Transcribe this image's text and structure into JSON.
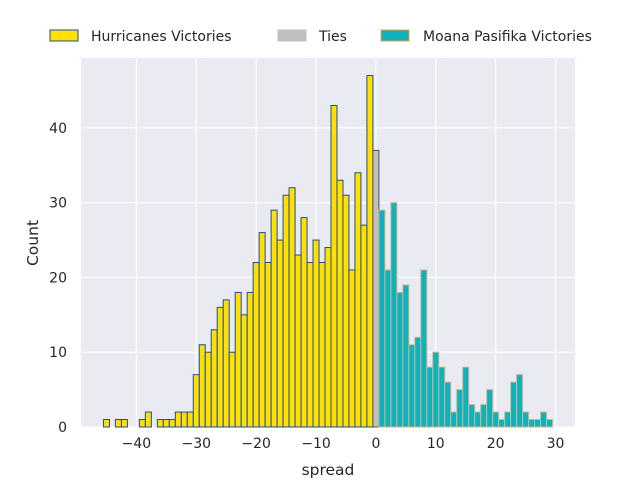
{
  "chart_data": {
    "type": "bar",
    "title": "",
    "xlabel": "spread",
    "ylabel": "Count",
    "xlim": [
      -49.25,
      33.25
    ],
    "ylim": [
      0,
      49.35
    ],
    "xticks": [
      -40,
      -30,
      -20,
      -10,
      0,
      10,
      20,
      30
    ],
    "xtick_labels": [
      "−40",
      "−30",
      "−20",
      "−10",
      "0",
      "10",
      "20",
      "30"
    ],
    "yticks": [
      0,
      10,
      20,
      30,
      40
    ],
    "ytick_labels": [
      "0",
      "10",
      "20",
      "30",
      "40"
    ],
    "grid": true,
    "legend_placement": "top (above plot)",
    "series": [
      {
        "name": "Hurricanes Victories",
        "color": "#FFE000",
        "edge": "#1F4E99",
        "x": [
          -45,
          -43,
          -42,
          -39,
          -38,
          -36,
          -35,
          -34,
          -33,
          -32,
          -31,
          -30,
          -29,
          -28,
          -27,
          -26,
          -25,
          -24,
          -23,
          -22,
          -21,
          -20,
          -19,
          -18,
          -17,
          -16,
          -15,
          -14,
          -13,
          -12,
          -11,
          -10,
          -9,
          -8,
          -7,
          -6,
          -5,
          -4,
          -3,
          -2,
          -1
        ],
        "values": [
          1,
          1,
          1,
          1,
          2,
          1,
          1,
          1,
          2,
          2,
          2,
          7,
          11,
          10,
          13,
          16,
          17,
          10,
          18,
          15,
          18,
          22,
          26,
          22,
          29,
          25,
          31,
          32,
          23,
          28,
          22,
          25,
          22,
          24,
          43,
          33,
          31,
          21,
          34,
          27,
          47
        ]
      },
      {
        "name": "Ties",
        "color": "#C0C0C0",
        "edge": "#555555",
        "x": [
          0
        ],
        "values": [
          37
        ]
      },
      {
        "name": "Moana Pasifika Victories",
        "color": "#0EB1BC",
        "edge": "#D2B48C",
        "x": [
          1,
          2,
          3,
          4,
          5,
          6,
          7,
          8,
          9,
          10,
          11,
          12,
          13,
          14,
          15,
          16,
          17,
          18,
          19,
          20,
          21,
          22,
          23,
          24,
          25,
          26,
          27,
          28,
          29
        ],
        "values": [
          29,
          21,
          30,
          18,
          19,
          11,
          12,
          21,
          8,
          10,
          8,
          6,
          2,
          5,
          8,
          3,
          2,
          3,
          5,
          2,
          1,
          2,
          6,
          7,
          2,
          1,
          1,
          2,
          1
        ]
      }
    ]
  }
}
